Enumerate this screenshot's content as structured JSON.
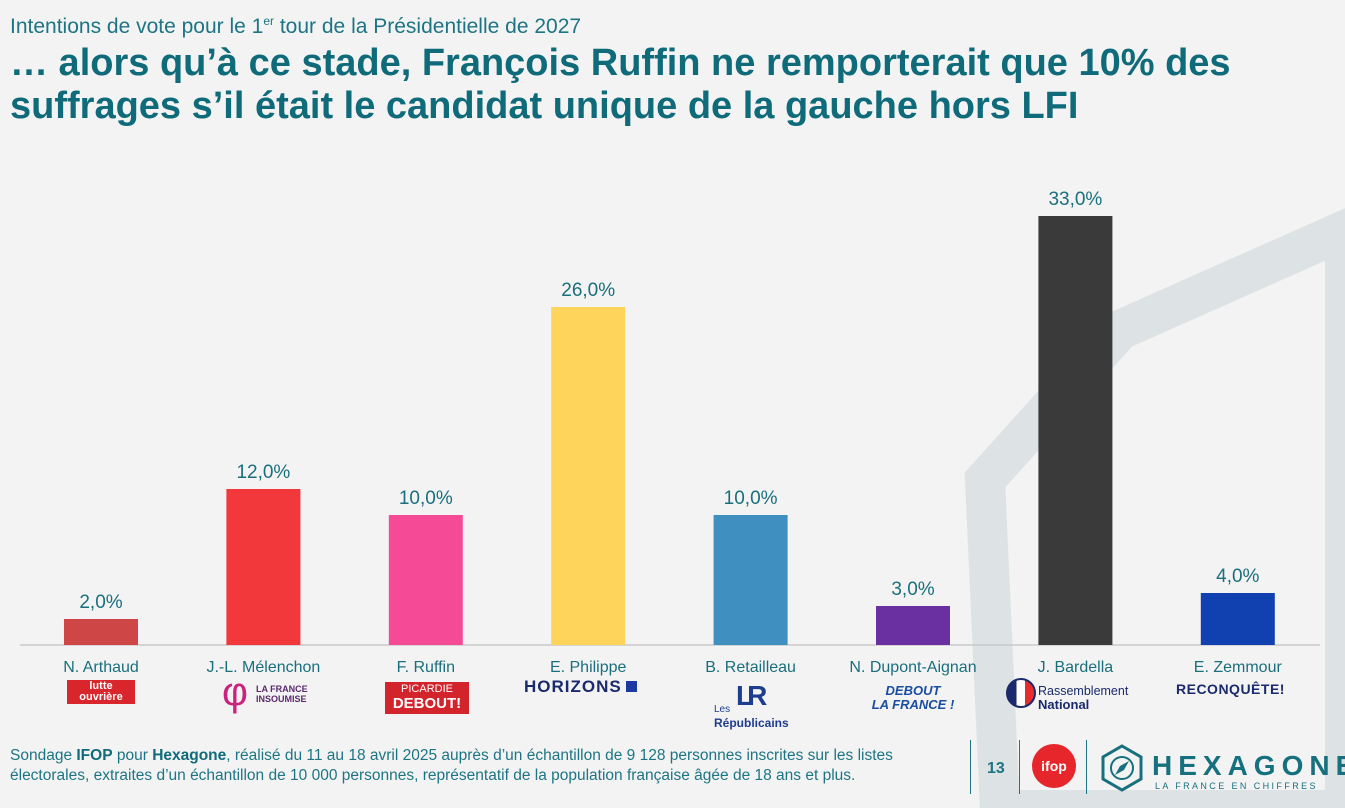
{
  "header": {
    "supertitle_pre": "Intentions de vote pour le 1",
    "supertitle_sup": "er",
    "supertitle_post": " tour de la Présidentielle de 2027",
    "title": "… alors qu’à ce stade, François Ruffin ne remporterait que 10% des suffrages s’il était le candidat unique de la gauche hors LFI"
  },
  "chart_data": {
    "type": "bar",
    "categories": [
      "N. Arthaud",
      "J.-L. Mélenchon",
      "F. Ruffin",
      "E. Philippe",
      "B. Retailleau",
      "N. Dupont-Aignan",
      "J. Bardella",
      "E. Zemmour"
    ],
    "values": [
      2.0,
      12.0,
      10.0,
      26.0,
      10.0,
      3.0,
      33.0,
      4.0
    ],
    "value_labels": [
      "2,0%",
      "12,0%",
      "10,0%",
      "26,0%",
      "10,0%",
      "3,0%",
      "33,0%",
      "4,0%"
    ],
    "colors": [
      "#cf4646",
      "#f2383a",
      "#f54b97",
      "#ffd45a",
      "#3f8fc0",
      "#6a2fa0",
      "#3a3a3a",
      "#1140b0"
    ],
    "ylim": [
      0,
      33
    ],
    "grid": false
  },
  "logos": {
    "arthaud": "lutte ouvrière",
    "melenchon_symbol": "φ",
    "melenchon_text": "LA FRANCE INSOUMISE",
    "ruffin_top": "PICARDIE",
    "ruffin_bottom": "DEBOUT!",
    "philippe": "HORIZONS",
    "retailleau_mark": "LR",
    "retailleau_les": "Les",
    "retailleau_name": "Républicains",
    "dupont_top": "DEBOUT",
    "dupont_bottom": "LA FRANCE !",
    "bardella_top": "Rassemblement",
    "bardella_bottom": "National",
    "zemmour": "RECONQUÊTE!"
  },
  "footer": {
    "pre": "Sondage ",
    "ifop": "IFOP",
    "mid": " pour ",
    "hexagone": "Hexagone",
    "post": ", réalisé du 11 au 18 avril 2025 auprès d’un échantillon de 9 128 personnes inscrites sur les listes électorales, extraites d’un échantillon de 10 000 personnes, représentatif de la population française âgée de 18 ans et plus.",
    "page_number": "13",
    "ifop_logo": "ifop",
    "brand": "HEXAGONE",
    "brand_tagline": "LA FRANCE EN CHIFFRES"
  }
}
